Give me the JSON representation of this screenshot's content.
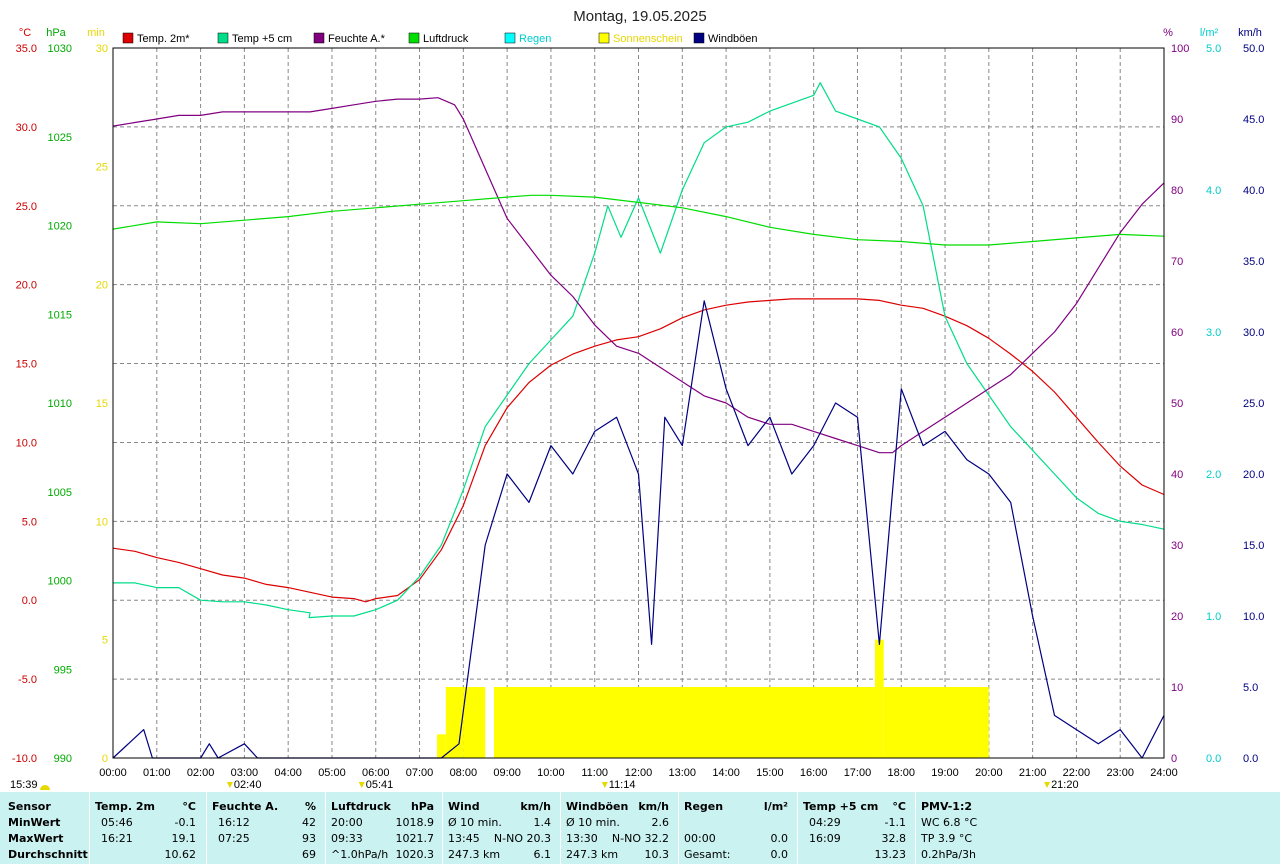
{
  "chart_data": {
    "type": "line",
    "title": "Montag, 19.05.2025",
    "x_ticks": [
      "00:00",
      "01:00",
      "02:00",
      "03:00",
      "04:00",
      "05:00",
      "06:00",
      "07:00",
      "08:00",
      "09:00",
      "10:00",
      "11:00",
      "12:00",
      "13:00",
      "14:00",
      "15:00",
      "16:00",
      "17:00",
      "18:00",
      "19:00",
      "20:00",
      "21:00",
      "22:00",
      "23:00",
      "24:00"
    ],
    "axes": {
      "temp": {
        "unit": "°C",
        "color": "#cc0000",
        "range": [
          -10,
          35
        ],
        "ticks": [
          "35.0",
          "30.0",
          "25.0",
          "20.0",
          "15.0",
          "10.0",
          "5.0",
          "0.0",
          "-5.0",
          "-10.0"
        ]
      },
      "pressure": {
        "unit": "hPa",
        "color": "#00aa00",
        "range": [
          990,
          1030
        ],
        "ticks": [
          "1030",
          "1025",
          "1020",
          "1015",
          "1010",
          "1005",
          "1000",
          "995",
          "990"
        ]
      },
      "sun": {
        "unit": "min",
        "color": "#e6d800",
        "range": [
          0,
          30
        ],
        "ticks": [
          "30",
          "25",
          "20",
          "15",
          "10",
          "5",
          "0"
        ]
      },
      "humidity": {
        "unit": "%",
        "color": "#800080",
        "range": [
          0,
          100
        ],
        "ticks": [
          "100",
          "90",
          "80",
          "70",
          "60",
          "50",
          "40",
          "30",
          "20",
          "10",
          "0"
        ]
      },
      "rain": {
        "unit": "l/m²",
        "color": "#00cccc",
        "range": [
          0,
          5
        ],
        "ticks": [
          "5.0",
          "4.0",
          "3.0",
          "2.0",
          "1.0",
          "0.0"
        ]
      },
      "wind": {
        "unit": "km/h",
        "color": "#000080",
        "range": [
          0,
          50
        ],
        "ticks": [
          "50.0",
          "45.0",
          "40.0",
          "35.0",
          "30.0",
          "25.0",
          "20.0",
          "15.0",
          "10.0",
          "5.0",
          "0.0"
        ]
      }
    },
    "legend": [
      {
        "name": "Temp. 2m*",
        "color": "#dd0000"
      },
      {
        "name": "Temp +5 cm",
        "color": "#00dd88"
      },
      {
        "name": "Feuchte A.*",
        "color": "#800080"
      },
      {
        "name": "Luftdruck",
        "color": "#00dd00"
      },
      {
        "name": "Regen",
        "color": "#00ffff"
      },
      {
        "name": "Sonnenschein",
        "color": "#ffff00"
      },
      {
        "name": "Windböen",
        "color": "#000080"
      }
    ],
    "series": [
      {
        "name": "Temp. 2m*",
        "axis": "temp",
        "color": "#dd0000",
        "points": [
          [
            0,
            3.3
          ],
          [
            0.5,
            3.1
          ],
          [
            1,
            2.7
          ],
          [
            1.5,
            2.4
          ],
          [
            2,
            2.0
          ],
          [
            2.5,
            1.6
          ],
          [
            3,
            1.4
          ],
          [
            3.5,
            1.0
          ],
          [
            4,
            0.8
          ],
          [
            4.5,
            0.5
          ],
          [
            5,
            0.2
          ],
          [
            5.5,
            0.1
          ],
          [
            5.77,
            -0.1
          ],
          [
            6,
            0.1
          ],
          [
            6.5,
            0.3
          ],
          [
            7,
            1.3
          ],
          [
            7.5,
            3.2
          ],
          [
            8,
            6.0
          ],
          [
            8.5,
            9.8
          ],
          [
            9,
            12.2
          ],
          [
            9.5,
            13.8
          ],
          [
            10,
            14.9
          ],
          [
            10.5,
            15.6
          ],
          [
            11,
            16.1
          ],
          [
            11.5,
            16.5
          ],
          [
            12,
            16.7
          ],
          [
            12.5,
            17.2
          ],
          [
            13,
            17.9
          ],
          [
            13.5,
            18.4
          ],
          [
            14,
            18.7
          ],
          [
            14.5,
            18.9
          ],
          [
            15,
            19.0
          ],
          [
            15.5,
            19.1
          ],
          [
            16,
            19.1
          ],
          [
            16.35,
            19.1
          ],
          [
            17,
            19.1
          ],
          [
            17.5,
            19.0
          ],
          [
            18,
            18.7
          ],
          [
            18.5,
            18.5
          ],
          [
            19,
            18.0
          ],
          [
            19.5,
            17.4
          ],
          [
            20,
            16.6
          ],
          [
            20.5,
            15.6
          ],
          [
            21,
            14.5
          ],
          [
            21.5,
            13.2
          ],
          [
            22,
            11.6
          ],
          [
            22.5,
            10.0
          ],
          [
            23,
            8.5
          ],
          [
            23.5,
            7.3
          ],
          [
            24,
            6.7
          ]
        ]
      },
      {
        "name": "Temp +5 cm",
        "axis": "temp",
        "color": "#00dd88",
        "points": [
          [
            0,
            1.1
          ],
          [
            0.5,
            1.1
          ],
          [
            1,
            0.8
          ],
          [
            1.5,
            0.8
          ],
          [
            2,
            0.0
          ],
          [
            2.5,
            -0.1
          ],
          [
            3,
            -0.1
          ],
          [
            3.5,
            -0.3
          ],
          [
            4,
            -0.6
          ],
          [
            4.5,
            -0.8
          ],
          [
            4.48,
            -1.1
          ],
          [
            5,
            -1.0
          ],
          [
            5.5,
            -1.0
          ],
          [
            6,
            -0.6
          ],
          [
            6.5,
            0.0
          ],
          [
            7,
            1.5
          ],
          [
            7.5,
            3.5
          ],
          [
            8,
            7.0
          ],
          [
            8.5,
            11.0
          ],
          [
            9,
            13.0
          ],
          [
            9.5,
            15.0
          ],
          [
            10,
            16.5
          ],
          [
            10.5,
            18.0
          ],
          [
            11,
            22.0
          ],
          [
            11.3,
            25.0
          ],
          [
            11.6,
            23.0
          ],
          [
            12,
            25.5
          ],
          [
            12.5,
            22.0
          ],
          [
            13,
            26.0
          ],
          [
            13.5,
            29.0
          ],
          [
            14,
            30.0
          ],
          [
            14.5,
            30.3
          ],
          [
            15,
            31.0
          ],
          [
            15.5,
            31.5
          ],
          [
            16,
            32.0
          ],
          [
            16.15,
            32.8
          ],
          [
            16.5,
            31.0
          ],
          [
            17,
            30.5
          ],
          [
            17.5,
            30.0
          ],
          [
            18,
            28.0
          ],
          [
            18.5,
            25.0
          ],
          [
            19,
            18.0
          ],
          [
            19.5,
            15.0
          ],
          [
            20,
            13.0
          ],
          [
            20.5,
            11.0
          ],
          [
            21,
            9.5
          ],
          [
            21.5,
            8.0
          ],
          [
            22,
            6.5
          ],
          [
            22.5,
            5.5
          ],
          [
            23,
            5.0
          ],
          [
            23.5,
            4.8
          ],
          [
            24,
            4.5
          ]
        ]
      },
      {
        "name": "Feuchte A.*",
        "axis": "humidity",
        "color": "#800080",
        "points": [
          [
            0,
            89
          ],
          [
            0.5,
            89.5
          ],
          [
            1,
            90
          ],
          [
            1.5,
            90.5
          ],
          [
            2,
            90.5
          ],
          [
            2.5,
            91
          ],
          [
            3,
            91
          ],
          [
            3.5,
            91
          ],
          [
            4,
            91
          ],
          [
            4.5,
            91
          ],
          [
            5,
            91.5
          ],
          [
            5.5,
            92
          ],
          [
            6,
            92.5
          ],
          [
            6.5,
            92.8
          ],
          [
            7,
            92.8
          ],
          [
            7.42,
            93
          ],
          [
            7.8,
            92
          ],
          [
            8,
            90
          ],
          [
            8.5,
            83
          ],
          [
            9,
            76
          ],
          [
            9.5,
            72
          ],
          [
            10,
            68
          ],
          [
            10.5,
            65
          ],
          [
            11,
            61
          ],
          [
            11.5,
            58
          ],
          [
            12,
            57
          ],
          [
            12.5,
            55
          ],
          [
            13,
            53
          ],
          [
            13.5,
            51
          ],
          [
            14,
            50
          ],
          [
            14.5,
            48
          ],
          [
            15,
            47
          ],
          [
            15.5,
            47
          ],
          [
            16,
            46
          ],
          [
            16.5,
            45
          ],
          [
            17,
            44
          ],
          [
            17.5,
            43
          ],
          [
            17.8,
            43
          ],
          [
            18,
            44
          ],
          [
            18.5,
            46
          ],
          [
            19,
            48
          ],
          [
            19.5,
            50
          ],
          [
            20,
            52
          ],
          [
            20.5,
            54
          ],
          [
            21,
            57
          ],
          [
            21.5,
            60
          ],
          [
            22,
            64
          ],
          [
            22.5,
            69
          ],
          [
            23,
            74
          ],
          [
            23.5,
            78
          ],
          [
            24,
            81
          ]
        ]
      },
      {
        "name": "Luftdruck",
        "axis": "pressure",
        "color": "#00dd00",
        "points": [
          [
            0,
            1019.8
          ],
          [
            1,
            1020.2
          ],
          [
            2,
            1020.1
          ],
          [
            3,
            1020.3
          ],
          [
            4,
            1020.5
          ],
          [
            5,
            1020.8
          ],
          [
            6,
            1021.0
          ],
          [
            7,
            1021.2
          ],
          [
            8,
            1021.4
          ],
          [
            9,
            1021.6
          ],
          [
            9.55,
            1021.7
          ],
          [
            10,
            1021.7
          ],
          [
            11,
            1021.6
          ],
          [
            12,
            1021.3
          ],
          [
            13,
            1021.0
          ],
          [
            14,
            1020.5
          ],
          [
            15,
            1019.9
          ],
          [
            16,
            1019.5
          ],
          [
            17,
            1019.2
          ],
          [
            18,
            1019.1
          ],
          [
            19,
            1018.9
          ],
          [
            20,
            1018.9
          ],
          [
            21,
            1019.1
          ],
          [
            22,
            1019.3
          ],
          [
            23,
            1019.5
          ],
          [
            24,
            1019.4
          ]
        ]
      },
      {
        "name": "Windböen",
        "axis": "wind",
        "color": "#000080",
        "points": [
          [
            0,
            0
          ],
          [
            0.7,
            2
          ],
          [
            0.9,
            0
          ],
          [
            2,
            0
          ],
          [
            2.2,
            1
          ],
          [
            2.4,
            0
          ],
          [
            3,
            1
          ],
          [
            3.3,
            0
          ],
          [
            4,
            0
          ],
          [
            7.5,
            0
          ],
          [
            7.9,
            1
          ],
          [
            8.2,
            8
          ],
          [
            8.5,
            15
          ],
          [
            9,
            20
          ],
          [
            9.5,
            18
          ],
          [
            10,
            22
          ],
          [
            10.5,
            20
          ],
          [
            11,
            23
          ],
          [
            11.5,
            24
          ],
          [
            12,
            20
          ],
          [
            12.3,
            8
          ],
          [
            12.6,
            24
          ],
          [
            13,
            22
          ],
          [
            13.5,
            32.2
          ],
          [
            14,
            26
          ],
          [
            14.5,
            22
          ],
          [
            15,
            24
          ],
          [
            15.5,
            20
          ],
          [
            16,
            22
          ],
          [
            16.5,
            25
          ],
          [
            17,
            24
          ],
          [
            17.5,
            8
          ],
          [
            18,
            26
          ],
          [
            18.5,
            22
          ],
          [
            19,
            23
          ],
          [
            19.5,
            21
          ],
          [
            20,
            20
          ],
          [
            20.5,
            18
          ],
          [
            21,
            10
          ],
          [
            21.5,
            3
          ],
          [
            22,
            2
          ],
          [
            22.5,
            1
          ],
          [
            23,
            2
          ],
          [
            23.5,
            0
          ],
          [
            24,
            3
          ]
        ]
      }
    ],
    "sunshine": {
      "axis": "sun",
      "color": "#ffff00",
      "intervals": [
        [
          7.4,
          7.6,
          1
        ],
        [
          7.6,
          8.0,
          3
        ],
        [
          8.0,
          8.5,
          3
        ],
        [
          8.7,
          17.4,
          3
        ],
        [
          17.4,
          17.6,
          5
        ],
        [
          17.6,
          20.0,
          3
        ]
      ]
    },
    "markers": [
      {
        "label": "02:40",
        "hour": 2.67
      },
      {
        "label": "05:41",
        "hour": 5.68
      },
      {
        "label": "11:14",
        "hour": 11.23
      },
      {
        "label": "21:20",
        "hour": 21.33
      }
    ],
    "sunrise_label": "15:39"
  },
  "footer": {
    "groups": [
      {
        "title": "Sensor",
        "rows": [
          "MinWert",
          "MaxWert",
          "Durchschnitt"
        ]
      },
      {
        "title": "Temp. 2m",
        "unit": "°C",
        "rows": [
          [
            "05:46",
            "-0.1"
          ],
          [
            "16:21",
            "19.1"
          ],
          [
            "",
            "10.62"
          ]
        ]
      },
      {
        "title": "Feuchte A.",
        "unit": "%",
        "rows": [
          [
            "16:12",
            "42"
          ],
          [
            "07:25",
            "93"
          ],
          [
            "",
            "69"
          ]
        ]
      },
      {
        "title": "Luftdruck",
        "unit": "hPa",
        "rows": [
          [
            "20:00",
            "1018.9"
          ],
          [
            "09:33",
            "1021.7"
          ],
          [
            "^1.0hPa/h",
            "1020.3"
          ]
        ]
      },
      {
        "title": "Wind",
        "unit": "km/h",
        "rows": [
          [
            "Ø 10 min.",
            "1.4"
          ],
          [
            "13:45",
            "N-NO 20.3"
          ],
          [
            "247.3 km",
            "6.1"
          ]
        ]
      },
      {
        "title": "Windböen",
        "unit": "km/h",
        "rows": [
          [
            "Ø 10 min.",
            "2.6"
          ],
          [
            "13:30",
            "N-NO 32.2"
          ],
          [
            "247.3 km",
            "10.3"
          ]
        ]
      },
      {
        "title": "Regen",
        "unit": "l/m²",
        "rows": [
          [
            "",
            ""
          ],
          [
            "00:00",
            "0.0"
          ],
          [
            "Gesamt:",
            "0.0"
          ]
        ]
      },
      {
        "title": "Temp +5 cm",
        "unit": "°C",
        "rows": [
          [
            "04:29",
            "-1.1"
          ],
          [
            "16:09",
            "32.8"
          ],
          [
            "",
            "13.23"
          ]
        ]
      },
      {
        "title": "PMV-1:2",
        "unit": "",
        "rows": [
          [
            "WC 6.8 °C",
            ""
          ],
          [
            "TP 3.9 °C",
            ""
          ],
          [
            "0.2hPa/3h",
            ""
          ]
        ]
      }
    ]
  }
}
